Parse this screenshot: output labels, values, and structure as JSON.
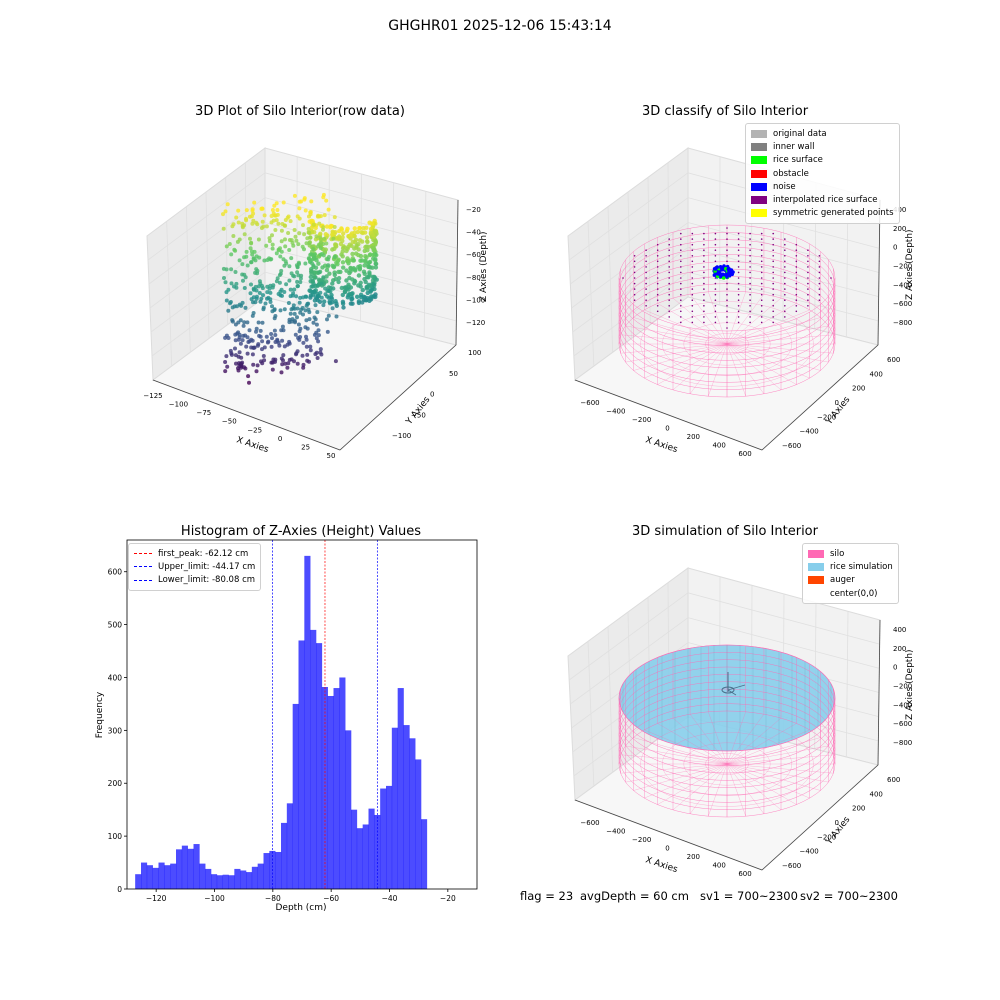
{
  "suptitle": "GHGHR01 2025-12-06 15:43:14",
  "panels": {
    "raw": {
      "title": "3D Plot of Silo Interior(row data)",
      "xlabel": "X Axies",
      "ylabel": "Y Axies",
      "zlabel": "Z Axies (Depth)",
      "xticks": [
        "−125",
        "−100",
        "−75",
        "−50",
        "−25",
        "0",
        "25",
        "50"
      ],
      "yticks": [
        "−100",
        "−50",
        "0",
        "50",
        "100"
      ],
      "zticks": [
        "−20",
        "−40",
        "−60",
        "−80",
        "−100",
        "−120"
      ]
    },
    "classify": {
      "title": "3D classify of Silo Interior",
      "xlabel": "X Axies",
      "ylabel": "Y Axies",
      "zlabel": "Z Axies (Depth)",
      "xticks": [
        "−600",
        "−400",
        "−200",
        "0",
        "200",
        "400",
        "600"
      ],
      "yticks": [
        "−600",
        "−400",
        "−200",
        "0",
        "200",
        "400",
        "600"
      ],
      "zticks": [
        "400",
        "200",
        "0",
        "−200",
        "−400",
        "−600",
        "−800"
      ],
      "legend": [
        {
          "label": "original data",
          "color": "#b3b3b3"
        },
        {
          "label": "inner wall",
          "color": "#808080"
        },
        {
          "label": "rice surface",
          "color": "#00ff00"
        },
        {
          "label": "obstacle",
          "color": "#ff0000"
        },
        {
          "label": "noise",
          "color": "#0000ff"
        },
        {
          "label": "interpolated rice surface",
          "color": "#800080"
        },
        {
          "label": "symmetric generated points",
          "color": "#ffff00"
        }
      ]
    },
    "simulation": {
      "title": "3D simulation of Silo Interior",
      "xlabel": "X Axies",
      "ylabel": "Y Axies",
      "zlabel": "Z Axies (Depth)",
      "xticks": [
        "−600",
        "−400",
        "−200",
        "0",
        "200",
        "400",
        "600"
      ],
      "yticks": [
        "−600",
        "−400",
        "−200",
        "0",
        "200",
        "400",
        "600"
      ],
      "zticks": [
        "400",
        "200",
        "0",
        "−200",
        "−400",
        "−600",
        "−800"
      ],
      "legend": [
        {
          "label": "silo",
          "color": "#ff69b4"
        },
        {
          "label": "rice simulation",
          "color": "#87ceeb"
        },
        {
          "label": "auger",
          "color": "#ff4500"
        },
        {
          "label": "center(0,0)",
          "color": "#ffffff"
        }
      ]
    }
  },
  "footer": {
    "flag": "flag = 23",
    "avg": "avgDepth = 60 cm",
    "sv1": "sv1 = 700~2300",
    "sv2": "sv2 = 700~2300"
  },
  "chart_data": [
    {
      "type": "scatter",
      "title": "3D Plot of Silo Interior(row data)",
      "xlabel": "X Axies",
      "ylabel": "Y Axies",
      "zlabel": "Z Axies (Depth)",
      "xlim": [
        -125,
        50
      ],
      "ylim": [
        -100,
        100
      ],
      "zlim": [
        -130,
        -10
      ],
      "colormap": "viridis"
    },
    {
      "type": "scatter",
      "title": "3D classify of Silo Interior",
      "xlabel": "X Axies",
      "ylabel": "Y Axies",
      "zlabel": "Z Axies (Depth)",
      "xlim": [
        -700,
        700
      ],
      "ylim": [
        -700,
        700
      ],
      "zlim": [
        -900,
        400
      ],
      "series": [
        {
          "name": "original data"
        },
        {
          "name": "inner wall"
        },
        {
          "name": "rice surface"
        },
        {
          "name": "obstacle"
        },
        {
          "name": "noise"
        },
        {
          "name": "interpolated rice surface"
        },
        {
          "name": "symmetric generated points"
        }
      ]
    },
    {
      "type": "bar",
      "title": "Histogram of Z-Axies (Height) Values",
      "xlabel": "Depth (cm)",
      "ylabel": "Frequency",
      "xlim": [
        -130,
        -10
      ],
      "ylim": [
        0,
        660
      ],
      "xticks": [
        -120,
        -100,
        -80,
        -60,
        -40,
        -20
      ],
      "yticks": [
        0,
        100,
        200,
        300,
        400,
        500,
        600
      ],
      "bin_width": 2,
      "bin_start": -127.2,
      "values": [
        28,
        50,
        45,
        40,
        50,
        45,
        48,
        75,
        82,
        76,
        85,
        48,
        38,
        28,
        26,
        27,
        26,
        38,
        35,
        32,
        42,
        48,
        68,
        72,
        70,
        125,
        162,
        350,
        470,
        630,
        490,
        465,
        382,
        365,
        380,
        400,
        300,
        150,
        115,
        122,
        152,
        140,
        190,
        195,
        305,
        380,
        310,
        285,
        245,
        132
      ],
      "color": "#0000ff",
      "vlines": [
        {
          "label": "first_peak: -62.12 cm",
          "x": -62.12,
          "color": "#ff0000"
        },
        {
          "label": "Upper_limit: -44.17 cm",
          "x": -44.17,
          "color": "#0000ff"
        },
        {
          "label": "Lower_limit: -80.08 cm",
          "x": -80.08,
          "color": "#0000ff"
        }
      ]
    },
    {
      "type": "scatter",
      "title": "3D simulation of Silo Interior",
      "xlabel": "X Axies",
      "ylabel": "Y Axies",
      "zlabel": "Z Axies (Depth)",
      "xlim": [
        -700,
        700
      ],
      "ylim": [
        -700,
        700
      ],
      "zlim": [
        -900,
        400
      ],
      "series": [
        {
          "name": "silo"
        },
        {
          "name": "rice simulation"
        },
        {
          "name": "auger"
        },
        {
          "name": "center(0,0)"
        }
      ]
    }
  ]
}
